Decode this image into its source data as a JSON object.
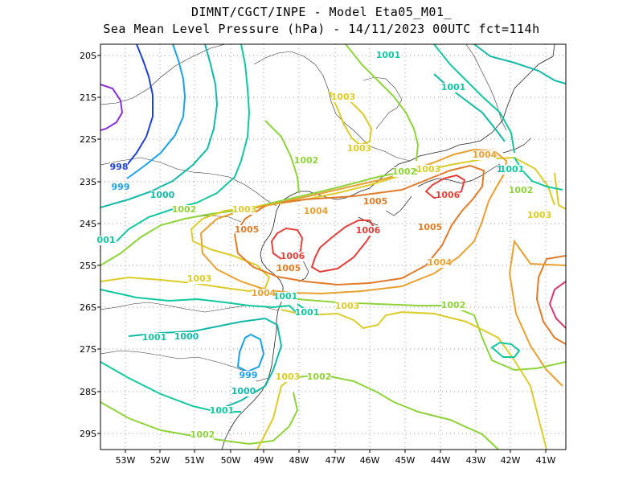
{
  "header": {
    "line1": "DIMNT/CGCT/INPE -  Model Eta05_M01_",
    "line2": "Sea Mean Level Pressure (hPa) - 14/11/2023 00UTC fct=114h"
  },
  "axes": {
    "lon_labels": [
      "53W",
      "52W",
      "51W",
      "50W",
      "49W",
      "48W",
      "47W",
      "46W",
      "45W",
      "44W",
      "43W",
      "42W",
      "41W"
    ],
    "lat_labels": [
      "20S",
      "21S",
      "22S",
      "23S",
      "24S",
      "25S",
      "26S",
      "27S",
      "28S",
      "29S"
    ]
  },
  "contour_labels": [
    {
      "text": "998",
      "color": "#1f3fd6"
    },
    {
      "text": "999",
      "color": "#1aa0e6"
    },
    {
      "text": "1000",
      "color": "#14b8a6"
    },
    {
      "text": "1001",
      "color": "#11c7a0"
    },
    {
      "text": "1001",
      "color": "#11c7a0"
    },
    {
      "text": "1002",
      "color": "#8fd33a"
    },
    {
      "text": "1002",
      "color": "#8fd33a"
    },
    {
      "text": "1003",
      "color": "#dccc2a"
    },
    {
      "text": "1003",
      "color": "#dccc2a"
    },
    {
      "text": "1004",
      "color": "#e8a030"
    },
    {
      "text": "1005",
      "color": "#e07b2a"
    },
    {
      "text": "1005",
      "color": "#e07b2a"
    },
    {
      "text": "1006",
      "color": "#e2403a"
    },
    {
      "text": "1006",
      "color": "#e2403a"
    },
    {
      "text": "1006",
      "color": "#e2403a"
    },
    {
      "text": "1000",
      "color": "#14b8a6"
    },
    {
      "text": "1001",
      "color": "#11c7a0"
    },
    {
      "text": "1002",
      "color": "#8fd33a"
    },
    {
      "text": "1003",
      "color": "#dccc2a"
    },
    {
      "text": "1004",
      "color": "#e8a030"
    },
    {
      "text": "1005",
      "color": "#e07b2a"
    },
    {
      "text": "1004",
      "color": "#e8a030"
    },
    {
      "text": "1003",
      "color": "#dccc2a"
    },
    {
      "text": "1002",
      "color": "#8fd33a"
    },
    {
      "text": "1001",
      "color": "#11c7a0"
    },
    {
      "text": "1000",
      "color": "#14b8a6"
    },
    {
      "text": "999",
      "color": "#1aa0e6"
    },
    {
      "text": "1002",
      "color": "#8fd33a"
    },
    {
      "text": "1003",
      "color": "#dccc2a"
    },
    {
      "text": "1001",
      "color": "#11c7a0"
    },
    {
      "text": "1000",
      "color": "#14b8a6"
    },
    {
      "text": "1001",
      "color": "#11c7a0"
    },
    {
      "text": "1002",
      "color": "#8fd33a"
    },
    {
      "text": "1003",
      "color": "#dccc2a"
    },
    {
      "text": "1004",
      "color": "#e8a030"
    },
    {
      "text": "1005",
      "color": "#e07b2a"
    },
    {
      "text": "1002",
      "color": "#8fd33a"
    },
    {
      "text": "1003",
      "color": "#dccc2a"
    },
    {
      "text": "1001",
      "color": "#11c7a0"
    },
    {
      "text": "1002",
      "color": "#8fd33a"
    },
    {
      "text": "1001",
      "color": "#11c7a0"
    },
    {
      "text": "1002",
      "color": "#8fd33a"
    },
    {
      "text": "1003",
      "color": "#dccc2a"
    },
    {
      "text": "1004",
      "color": "#e8a030"
    },
    {
      "text": "1005",
      "color": "#e07b2a"
    },
    {
      "text": "1006",
      "color": "#e2403a"
    },
    {
      "text": "1004",
      "color": "#e8a030"
    },
    {
      "text": "001",
      "color": "#11c7a0"
    }
  ]
}
